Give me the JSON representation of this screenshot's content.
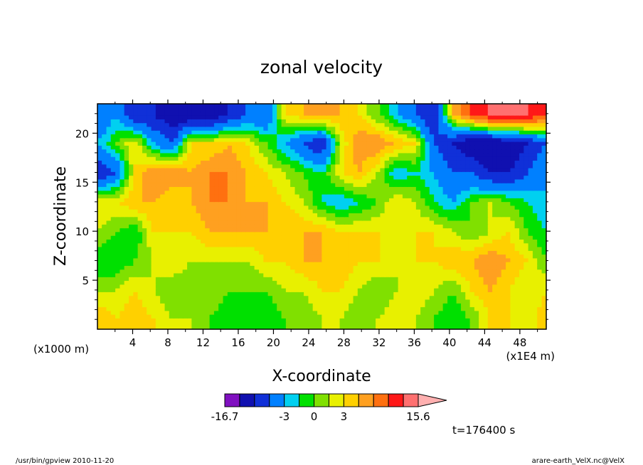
{
  "chart_data": {
    "type": "heatmap",
    "title": "zonal velocity",
    "xlabel": "X-coordinate",
    "ylabel": "Z-coordinate",
    "x_unit_left": "(x1000 m)",
    "x_unit_right": "(x1E4 m)",
    "xlim": [
      0,
      51
    ],
    "ylim": [
      0,
      23
    ],
    "xticks": [
      4,
      8,
      12,
      16,
      20,
      24,
      28,
      32,
      36,
      40,
      44,
      48
    ],
    "yticks": [
      5,
      10,
      15,
      20
    ],
    "time_label": "t=176400 s",
    "colorbar": {
      "colors": [
        "#e010b0",
        "#8010c0",
        "#1010b0",
        "#1030d8",
        "#0080ff",
        "#00d0f0",
        "#00e000",
        "#80e000",
        "#e8f000",
        "#ffd000",
        "#ffa020",
        "#ff7010",
        "#ff1818",
        "#ff7070",
        "#ffb0b0"
      ],
      "boundaries": [
        -16.7,
        -12,
        -9,
        -6,
        -3,
        -1.5,
        0,
        1.5,
        3,
        4.5,
        6,
        9,
        12,
        15.6
      ],
      "tick_labels": [
        {
          "value": -16.7,
          "label": "-16.7"
        },
        {
          "value": -3,
          "label": "-3"
        },
        {
          "value": 0,
          "label": "0"
        },
        {
          "value": 3,
          "label": "3"
        },
        {
          "value": 15.6,
          "label": "15.6"
        }
      ]
    },
    "field_approximation": [
      {
        "z": 22,
        "values": [
          -6,
          -3,
          -9,
          -9,
          -12,
          -12,
          -12,
          -9,
          -6,
          -6,
          3,
          4.5,
          6,
          4.5,
          3,
          0,
          -3,
          -6,
          -9,
          4.5,
          9,
          12,
          14,
          12,
          9
        ]
      },
      {
        "z": 19,
        "values": [
          -3,
          0,
          3,
          -3,
          -6,
          3,
          3,
          4.5,
          3,
          0,
          -3,
          -6,
          -9,
          1.5,
          6,
          6,
          4.5,
          3,
          -6,
          -9,
          -12,
          -12,
          -12,
          -9,
          -6
        ]
      },
      {
        "z": 16,
        "values": [
          -9,
          -6,
          3,
          6,
          6,
          4.5,
          6,
          6,
          4.5,
          3,
          1.5,
          0,
          -1.5,
          3,
          4.5,
          1.5,
          -3,
          -1.5,
          -3,
          -6,
          -6,
          -9,
          -9,
          -6,
          -3
        ]
      },
      {
        "z": 13,
        "values": [
          3,
          3,
          4.5,
          4.5,
          3,
          4.5,
          6,
          6,
          4.5,
          4.5,
          3,
          1.5,
          -1.5,
          -3,
          -1.5,
          0,
          3,
          1.5,
          -1.5,
          -3,
          0,
          1.5,
          0,
          -1.5,
          -3
        ]
      },
      {
        "z": 10,
        "values": [
          1.5,
          0,
          -1.5,
          3,
          3,
          3,
          4.5,
          4.5,
          4.5,
          4.5,
          4.5,
          4.5,
          4.5,
          3,
          3,
          3,
          3,
          3,
          3,
          1.5,
          0,
          1.5,
          3,
          0,
          -1.5
        ]
      },
      {
        "z": 7,
        "values": [
          -1.5,
          -1.5,
          0,
          1.5,
          3,
          1.5,
          1.5,
          1.5,
          1.5,
          3,
          3,
          4.5,
          4.5,
          4.5,
          3,
          3,
          1.5,
          3,
          3,
          4.5,
          4.5,
          6,
          4.5,
          3,
          0
        ]
      },
      {
        "z": 4,
        "values": [
          1.5,
          1.5,
          3,
          1.5,
          0,
          0,
          1.5,
          0,
          0,
          0,
          1.5,
          1.5,
          3,
          3,
          1.5,
          0,
          1.5,
          3,
          1.5,
          0,
          3,
          4.5,
          3,
          1.5,
          3
        ]
      },
      {
        "z": 1,
        "values": [
          4.5,
          3,
          4.5,
          3,
          1.5,
          1.5,
          0,
          -1.5,
          -1.5,
          -1.5,
          0,
          0,
          1.5,
          1.5,
          0,
          1.5,
          3,
          1.5,
          0,
          -1.5,
          0,
          3,
          3,
          1.5,
          4.5
        ]
      }
    ]
  },
  "footer": {
    "left": "/usr/bin/gpview   2010-11-20",
    "right": "arare-earth_VelX.nc@VelX"
  }
}
